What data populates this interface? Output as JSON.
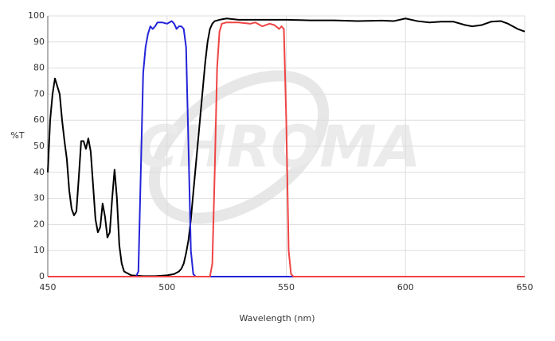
{
  "chart_data": {
    "type": "line",
    "watermark": "CHROMA",
    "xlabel": "Wavelength (nm)",
    "ylabel": "%T",
    "xlim": [
      450,
      650
    ],
    "xticks": [
      450,
      500,
      550,
      600,
      650
    ],
    "ylim": [
      0,
      100
    ],
    "yticks": [
      0,
      10,
      20,
      30,
      40,
      50,
      60,
      70,
      80,
      90,
      100
    ],
    "grid": true,
    "series": [
      {
        "color": "#000000",
        "x": [
          450,
          451,
          452,
          453,
          454,
          455,
          456,
          457,
          458,
          459,
          460,
          461,
          462,
          463,
          464,
          465,
          466,
          467,
          468,
          469,
          470,
          471,
          472,
          473,
          474,
          475,
          476,
          477,
          478,
          479,
          480,
          481,
          482,
          485,
          490,
          495,
          500,
          503,
          505,
          506,
          507,
          508,
          509,
          510,
          511,
          512,
          513,
          514,
          515,
          516,
          517,
          518,
          519,
          520,
          522,
          525,
          530,
          540,
          550,
          560,
          570,
          580,
          590,
          595,
          600,
          605,
          610,
          615,
          620,
          625,
          628,
          632,
          636,
          640,
          643,
          647,
          650
        ],
        "values": [
          40,
          60,
          70,
          76,
          73,
          70,
          60,
          52,
          45,
          33,
          26,
          23.5,
          25,
          38,
          52,
          52,
          49,
          53,
          48,
          35,
          22,
          17,
          19,
          28,
          23,
          15,
          17,
          30,
          41,
          30,
          12,
          5,
          2,
          0.5,
          0.2,
          0.2,
          0.5,
          1,
          2,
          3,
          5,
          9,
          14,
          22,
          32,
          42,
          52,
          62,
          72,
          82,
          90,
          95,
          97,
          98,
          98.5,
          99,
          98.5,
          98.5,
          98.5,
          98.3,
          98.3,
          98,
          98.2,
          98,
          99,
          98,
          97.5,
          97.8,
          97.8,
          96.5,
          96,
          96.5,
          97.8,
          98,
          97,
          95,
          94
        ]
      },
      {
        "color": "#2323d9",
        "x": [
          450,
          487,
          488,
          489,
          490,
          491,
          492,
          493,
          494,
          495,
          496,
          498,
          500,
          502,
          503,
          504,
          505,
          506,
          507,
          508,
          509,
          510,
          511,
          512,
          650
        ],
        "values": [
          0,
          0,
          2,
          40,
          78,
          88,
          93,
          96,
          95,
          96,
          97.5,
          97.5,
          97,
          98,
          97,
          95,
          96,
          96,
          95,
          88,
          50,
          10,
          1,
          0,
          0
        ]
      },
      {
        "color": "#ef4444",
        "x": [
          450,
          518,
          519,
          520,
          521,
          522,
          523,
          525,
          530,
          535,
          537,
          540,
          543,
          545,
          547,
          548,
          549,
          550,
          551,
          552,
          553,
          650
        ],
        "values": [
          0,
          0,
          5,
          40,
          80,
          94,
          97,
          97.5,
          97.5,
          97,
          97.5,
          96,
          97,
          96.5,
          95,
          96,
          95,
          60,
          10,
          1,
          0,
          0
        ]
      }
    ]
  }
}
